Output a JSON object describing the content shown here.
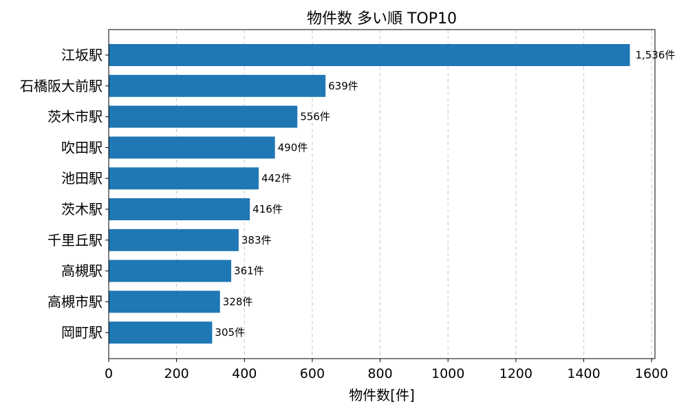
{
  "chart_data": {
    "type": "bar",
    "orientation": "horizontal",
    "title": "物件数 多い順 TOP10",
    "xlabel": "物件数[件]",
    "ylabel": "",
    "categories": [
      "江坂駅",
      "石橋阪大前駅",
      "茨木市駅",
      "吹田駅",
      "池田駅",
      "茨木駅",
      "千里丘駅",
      "高槻駅",
      "高槻市駅",
      "岡町駅"
    ],
    "values": [
      1536,
      639,
      556,
      490,
      442,
      416,
      383,
      361,
      328,
      305
    ],
    "data_labels": [
      "1,536件",
      "639件",
      "556件",
      "490件",
      "442件",
      "416件",
      "383件",
      "361件",
      "328件",
      "305件"
    ],
    "xlim": [
      0,
      1610
    ],
    "xticks": [
      0,
      200,
      400,
      600,
      800,
      1000,
      1200,
      1400,
      1600
    ],
    "xtick_labels": [
      "0",
      "200",
      "400",
      "600",
      "800",
      "1000",
      "1200",
      "1400",
      "1600"
    ],
    "grid": "x-axis dashed",
    "bar_color": "#1f77b4"
  }
}
